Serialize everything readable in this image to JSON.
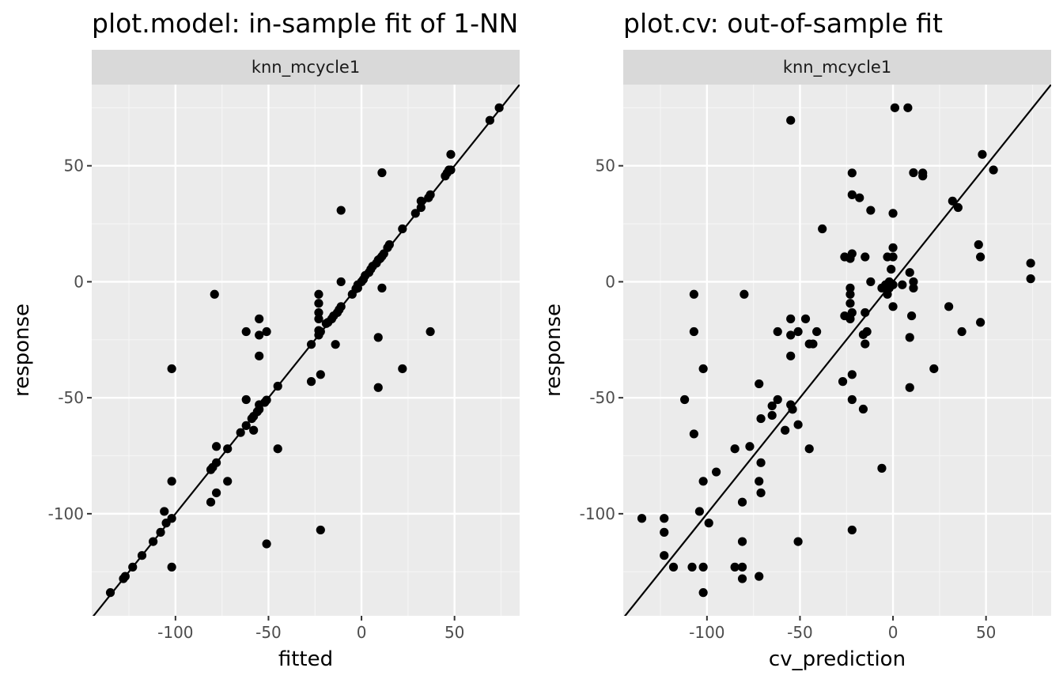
{
  "chart_data": [
    {
      "type": "scatter",
      "title": "plot.model: in-sample fit of 1-NN",
      "strip": "knn_mcycle1",
      "xlabel": "fitted",
      "ylabel": "response",
      "xlim": [
        -145,
        85
      ],
      "ylim": [
        -144,
        85
      ],
      "xticks": [
        -100,
        -50,
        0,
        50
      ],
      "yticks": [
        -100,
        -50,
        0,
        50
      ],
      "xtick_labels": [
        "-100",
        "-50",
        "0",
        "50"
      ],
      "ytick_labels": [
        "-100",
        "-50",
        "0",
        "50"
      ],
      "grid": true,
      "reference_line": "y = x",
      "points": [
        [
          -135,
          -134
        ],
        [
          -128,
          -128
        ],
        [
          -127,
          -127
        ],
        [
          -123,
          -123
        ],
        [
          -118,
          -118
        ],
        [
          -112,
          -112
        ],
        [
          -108,
          -108
        ],
        [
          -106,
          -99
        ],
        [
          -105,
          -104
        ],
        [
          -102,
          -102
        ],
        [
          -102,
          -123
        ],
        [
          -102,
          -86
        ],
        [
          -102,
          -37.5
        ],
        [
          -81,
          -81
        ],
        [
          -80,
          -80
        ],
        [
          -79,
          -5.4
        ],
        [
          -81,
          -95
        ],
        [
          -78,
          -78
        ],
        [
          -78,
          -71
        ],
        [
          -78,
          -91
        ],
        [
          -72,
          -72
        ],
        [
          -72,
          -86
        ],
        [
          -65,
          -65
        ],
        [
          -62,
          -62
        ],
        [
          -62,
          -50.8
        ],
        [
          -62,
          -21.5
        ],
        [
          -59,
          -59
        ],
        [
          -58,
          -58
        ],
        [
          -58,
          -64
        ],
        [
          -56,
          -56
        ],
        [
          -55,
          -55
        ],
        [
          -55,
          -53
        ],
        [
          -55,
          -16
        ],
        [
          -55,
          -23
        ],
        [
          -55,
          -32
        ],
        [
          -52,
          -52
        ],
        [
          -51,
          -51
        ],
        [
          -51,
          -21.5
        ],
        [
          -51,
          -113
        ],
        [
          -45,
          -45
        ],
        [
          -45,
          -72
        ],
        [
          -27,
          -27
        ],
        [
          -27,
          -43
        ],
        [
          -23,
          -23
        ],
        [
          -23,
          -21
        ],
        [
          -23,
          -5.4
        ],
        [
          -23,
          -9.3
        ],
        [
          -23,
          -13.3
        ],
        [
          -23,
          -16
        ],
        [
          -22,
          -21.5
        ],
        [
          -22,
          -40
        ],
        [
          -22,
          -107
        ],
        [
          -19,
          -18
        ],
        [
          -18,
          -17.5
        ],
        [
          -16,
          -16
        ],
        [
          -15,
          -14.7
        ],
        [
          -14,
          -27
        ],
        [
          -13,
          -13.3
        ],
        [
          -12,
          -12
        ],
        [
          -11,
          -10.7
        ],
        [
          -11,
          0
        ],
        [
          -11,
          30.8
        ],
        [
          -5,
          -5.4
        ],
        [
          -3,
          -3
        ],
        [
          -2,
          -2.7
        ],
        [
          -2,
          -1.3
        ],
        [
          0,
          0
        ],
        [
          1,
          1
        ],
        [
          2,
          2.7
        ],
        [
          4,
          4
        ],
        [
          5,
          5.4
        ],
        [
          6,
          6.7
        ],
        [
          8,
          8
        ],
        [
          9,
          9.4
        ],
        [
          9,
          -24
        ],
        [
          9,
          -45.6
        ],
        [
          10,
          10
        ],
        [
          11,
          11
        ],
        [
          11,
          -2.7
        ],
        [
          11,
          47
        ],
        [
          12,
          12.1
        ],
        [
          14,
          14.7
        ],
        [
          15,
          16
        ],
        [
          22,
          22.8
        ],
        [
          22,
          -37.5
        ],
        [
          29,
          29.5
        ],
        [
          32,
          32
        ],
        [
          32,
          34.8
        ],
        [
          36,
          36.2
        ],
        [
          37,
          37.5
        ],
        [
          37,
          -21.5
        ],
        [
          45,
          45.6
        ],
        [
          46,
          46.9
        ],
        [
          47,
          48.2
        ],
        [
          48,
          48.2
        ],
        [
          48,
          54.9
        ],
        [
          69,
          69.6
        ],
        [
          74,
          75
        ]
      ]
    },
    {
      "type": "scatter",
      "title": "plot.cv: out-of-sample fit",
      "strip": "knn_mcycle1",
      "xlabel": "cv_prediction",
      "ylabel": "response",
      "xlim": [
        -145,
        85
      ],
      "ylim": [
        -144,
        85
      ],
      "xticks": [
        -100,
        -50,
        0,
        50
      ],
      "yticks": [
        -100,
        -50,
        0,
        50
      ],
      "xtick_labels": [
        "-100",
        "-50",
        "0",
        "50"
      ],
      "ytick_labels": [
        "-100",
        "-50",
        "0",
        "50"
      ],
      "grid": true,
      "reference_line": "y = x",
      "points": [
        [
          -135,
          -102
        ],
        [
          -123,
          -102
        ],
        [
          -123,
          -108
        ],
        [
          -123,
          -118
        ],
        [
          -118,
          -123
        ],
        [
          -112,
          -50.8
        ],
        [
          -108,
          -123
        ],
        [
          -107,
          -65.6
        ],
        [
          -107,
          -5.4
        ],
        [
          -107,
          -21.5
        ],
        [
          -104,
          -99
        ],
        [
          -102,
          -134
        ],
        [
          -102,
          -123
        ],
        [
          -102,
          -86
        ],
        [
          -102,
          -37.5
        ],
        [
          -99,
          -104
        ],
        [
          -95,
          -82
        ],
        [
          -85,
          -72
        ],
        [
          -85,
          -123
        ],
        [
          -81,
          -112
        ],
        [
          -81,
          -123
        ],
        [
          -81,
          -128
        ],
        [
          -81,
          -95
        ],
        [
          -80,
          -5.4
        ],
        [
          -77,
          -71
        ],
        [
          -72,
          -44
        ],
        [
          -72,
          -86
        ],
        [
          -72,
          -127
        ],
        [
          -71,
          -59
        ],
        [
          -71,
          -78
        ],
        [
          -71,
          -91
        ],
        [
          -65,
          -53.5
        ],
        [
          -65,
          -57.6
        ],
        [
          -62,
          -21.5
        ],
        [
          -62,
          -50.8
        ],
        [
          -58,
          -64
        ],
        [
          -55,
          -53
        ],
        [
          -55,
          -16
        ],
        [
          -55,
          -23
        ],
        [
          -55,
          -32
        ],
        [
          -55,
          69.6
        ],
        [
          -54,
          -55
        ],
        [
          -51,
          -21.5
        ],
        [
          -51,
          -61.6
        ],
        [
          -51,
          -112
        ],
        [
          -47,
          -16
        ],
        [
          -45,
          -72
        ],
        [
          -45,
          -26.8
        ],
        [
          -43,
          -26.8
        ],
        [
          -41,
          -21.5
        ],
        [
          -38,
          22.8
        ],
        [
          -27,
          -43
        ],
        [
          -26,
          -14.7
        ],
        [
          -26,
          10.7
        ],
        [
          -23,
          10
        ],
        [
          -23,
          -5.4
        ],
        [
          -23,
          -2.7
        ],
        [
          -23,
          -9.3
        ],
        [
          -23,
          -16
        ],
        [
          -22,
          -13.3
        ],
        [
          -22,
          12.1
        ],
        [
          -22,
          37.5
        ],
        [
          -22,
          46.9
        ],
        [
          -22,
          -40
        ],
        [
          -22,
          -50.8
        ],
        [
          -22,
          -107
        ],
        [
          -18,
          36.2
        ],
        [
          -16,
          -22.8
        ],
        [
          -16,
          -54.9
        ],
        [
          -15,
          -26.8
        ],
        [
          -15,
          10.7
        ],
        [
          -15,
          -13.3
        ],
        [
          -14,
          -21.5
        ],
        [
          -12,
          0
        ],
        [
          -12,
          30.8
        ],
        [
          -6,
          -2.7
        ],
        [
          -6,
          -80.4
        ],
        [
          -4,
          -1.3
        ],
        [
          -3,
          -5.4
        ],
        [
          -3,
          10.7
        ],
        [
          -2,
          0
        ],
        [
          -2,
          -2.7
        ],
        [
          -1,
          5.4
        ],
        [
          0,
          -1.3
        ],
        [
          0,
          14.7
        ],
        [
          0,
          10.7
        ],
        [
          0,
          29.5
        ],
        [
          0,
          -10.7
        ],
        [
          1,
          75
        ],
        [
          5,
          -1.3
        ],
        [
          8,
          75
        ],
        [
          9,
          4
        ],
        [
          9,
          -24
        ],
        [
          9,
          -45.6
        ],
        [
          10,
          -14.7
        ],
        [
          11,
          -2.7
        ],
        [
          11,
          0
        ],
        [
          11,
          47
        ],
        [
          16,
          46.9
        ],
        [
          16,
          45.6
        ],
        [
          22,
          -37.5
        ],
        [
          30,
          -10.7
        ],
        [
          32,
          34.8
        ],
        [
          35,
          32
        ],
        [
          37,
          -21.5
        ],
        [
          46,
          16
        ],
        [
          47,
          10.7
        ],
        [
          47,
          -17.5
        ],
        [
          48,
          54.9
        ],
        [
          54,
          48.2
        ],
        [
          74,
          8
        ],
        [
          74,
          1.3
        ]
      ]
    }
  ]
}
